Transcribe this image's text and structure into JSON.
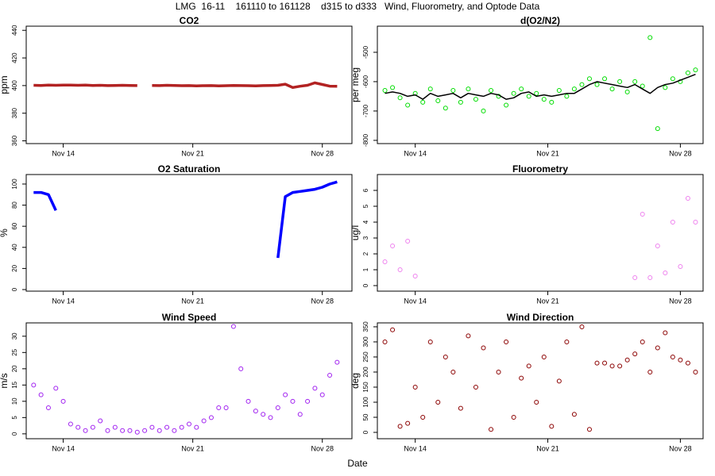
{
  "page": {
    "title": "LMG  16-11    161110 to 161128    d315 to d333   Wind, Fluorometry, and Optode Data",
    "xlabel": "Date"
  },
  "chart_data": [
    {
      "type": "line",
      "title": "CO2",
      "ylabel": "ppm",
      "x": [
        317.4,
        317.8,
        318.2,
        318.6,
        319.0,
        319.4,
        319.8,
        320.2,
        320.6,
        321.0,
        321.4,
        321.8,
        322.2,
        322.6,
        323.0,
        323.4,
        323.8,
        324.2,
        324.6,
        325.0,
        325.4,
        325.8,
        326.2,
        326.6,
        327.0,
        327.4,
        327.8,
        328.2,
        328.6,
        329.0,
        329.4,
        329.8,
        330.2,
        330.6,
        331.0,
        331.4,
        331.8,
        332.2,
        332.6,
        333.0,
        333.4,
        333.8
      ],
      "series": [
        {
          "color": "#b22222",
          "values": [
            400.2,
            400.1,
            400.3,
            400.2,
            400.4,
            400.3,
            400.2,
            400.3,
            400.1,
            400.2,
            400.0,
            400.1,
            400.2,
            400.1,
            400.0,
            null,
            400.1,
            400.0,
            400.2,
            400.1,
            399.9,
            400.0,
            399.8,
            399.9,
            400.0,
            399.8,
            399.9,
            400.1,
            400.0,
            399.9,
            399.8,
            400.0,
            400.1,
            400.2,
            401.0,
            398.6,
            399.5,
            400.2,
            402.0,
            400.8,
            399.6,
            399.5
          ]
        }
      ],
      "xlim": [
        317,
        334.6
      ],
      "xticks": [
        {
          "value": 319,
          "label": "Nov 14"
        },
        {
          "value": 326,
          "label": "Nov 21"
        },
        {
          "value": 333,
          "label": "Nov 28"
        }
      ],
      "ylim": [
        358,
        443
      ],
      "yticks": [
        360,
        380,
        400,
        420,
        440
      ]
    },
    {
      "type": "scatter",
      "title": "d(O2/N2)",
      "ylabel": "per meg",
      "x": [
        317.4,
        317.8,
        318.2,
        318.6,
        319.0,
        319.4,
        319.8,
        320.2,
        320.6,
        321.0,
        321.4,
        321.8,
        322.2,
        322.6,
        323.0,
        323.4,
        323.8,
        324.2,
        324.6,
        325.0,
        325.4,
        325.8,
        326.2,
        326.6,
        327.0,
        327.4,
        327.8,
        328.2,
        328.6,
        329.0,
        329.4,
        329.8,
        330.2,
        330.6,
        331.0,
        331.4,
        331.8,
        332.2,
        332.6,
        333.0,
        333.4,
        333.8
      ],
      "series": [
        {
          "color": "#00dd00",
          "mode": "points",
          "values": [
            -630,
            -620,
            -655,
            -680,
            -640,
            -670,
            -625,
            -665,
            -690,
            -630,
            -670,
            -625,
            -660,
            -700,
            -630,
            -650,
            -680,
            -640,
            -625,
            -650,
            -640,
            -660,
            -670,
            -630,
            -650,
            -625,
            -610,
            -590,
            -610,
            -590,
            -625,
            -600,
            -635,
            -600,
            -615,
            -450,
            -760,
            -620,
            -590,
            -600,
            -570,
            -560
          ]
        },
        {
          "color": "#000000",
          "mode": "line",
          "values": [
            -640,
            -635,
            -640,
            -650,
            -645,
            -660,
            -640,
            -650,
            -645,
            -640,
            -655,
            -640,
            -645,
            -650,
            -640,
            -645,
            -660,
            -655,
            -640,
            -635,
            -650,
            -645,
            -650,
            -645,
            -640,
            -640,
            -625,
            -610,
            -600,
            -605,
            -610,
            -615,
            -620,
            -610,
            -625,
            -640,
            -620,
            -610,
            -605,
            -595,
            -585,
            -575
          ]
        }
      ],
      "xlim": [
        317,
        334.2
      ],
      "xticks": [
        {
          "value": 319,
          "label": "Nov 14"
        },
        {
          "value": 326,
          "label": "Nov 21"
        },
        {
          "value": 333,
          "label": "Nov 28"
        }
      ],
      "ylim": [
        -811,
        -411
      ],
      "yticks": [
        -800,
        -700,
        -600,
        -500
      ]
    },
    {
      "type": "line",
      "title": "O2 Saturation",
      "ylabel": "%",
      "x": [
        317.4,
        317.8,
        318.2,
        318.6,
        319.0,
        319.4,
        319.8,
        320.2,
        320.6,
        321.0,
        321.4,
        321.8,
        322.2,
        322.6,
        323.0,
        323.4,
        323.8,
        324.2,
        324.6,
        325.0,
        325.4,
        325.8,
        326.2,
        326.6,
        327.0,
        327.4,
        327.8,
        328.2,
        328.6,
        329.0,
        329.4,
        329.8,
        330.2,
        330.6,
        331.0,
        331.4,
        331.8,
        332.2,
        332.6,
        333.0,
        333.4,
        333.8
      ],
      "series": [
        {
          "color": "#0000ff",
          "values": [
            92,
            92,
            90,
            75,
            null,
            null,
            null,
            null,
            null,
            null,
            null,
            null,
            null,
            null,
            null,
            null,
            null,
            null,
            null,
            null,
            null,
            null,
            null,
            null,
            null,
            null,
            null,
            null,
            null,
            null,
            null,
            null,
            null,
            30,
            88,
            92,
            93,
            94,
            95,
            97,
            100,
            102
          ]
        }
      ],
      "xlim": [
        317,
        334.6
      ],
      "xticks": [
        {
          "value": 319,
          "label": "Nov 14"
        },
        {
          "value": 326,
          "label": "Nov 21"
        },
        {
          "value": 333,
          "label": "Nov 28"
        }
      ],
      "ylim": [
        -1.5,
        109
      ],
      "yticks": [
        0,
        20,
        40,
        60,
        80,
        100
      ]
    },
    {
      "type": "scatter",
      "title": "Fluorometry",
      "ylabel": "ug/l",
      "x": [
        317.4,
        317.8,
        318.2,
        318.6,
        319.0,
        319.4,
        319.8,
        320.2,
        320.6,
        321.0,
        321.4,
        321.8,
        322.2,
        322.6,
        323.0,
        323.4,
        323.8,
        324.2,
        324.6,
        325.0,
        325.4,
        325.8,
        326.2,
        326.6,
        327.0,
        327.4,
        327.8,
        328.2,
        328.6,
        329.0,
        329.4,
        329.8,
        330.2,
        330.6,
        331.0,
        331.4,
        331.8,
        332.2,
        332.6,
        333.0,
        333.4,
        333.8
      ],
      "series": [
        {
          "color": "#ee82ee",
          "values": [
            1.5,
            2.5,
            1.0,
            2.8,
            0.6,
            null,
            null,
            null,
            null,
            null,
            null,
            null,
            null,
            null,
            null,
            null,
            null,
            null,
            null,
            null,
            null,
            null,
            null,
            null,
            null,
            null,
            null,
            null,
            null,
            null,
            null,
            null,
            null,
            0.5,
            4.5,
            0.5,
            2.5,
            0.8,
            4.0,
            1.2,
            5.5,
            4.0
          ]
        }
      ],
      "xlim": [
        317,
        334.2
      ],
      "xticks": [
        {
          "value": 319,
          "label": "Nov 14"
        },
        {
          "value": 326,
          "label": "Nov 21"
        },
        {
          "value": 333,
          "label": "Nov 28"
        }
      ],
      "ylim": [
        -0.35,
        7
      ],
      "yticks": [
        0,
        1,
        2,
        3,
        4,
        5,
        6
      ]
    },
    {
      "type": "scatter",
      "title": "Wind Speed",
      "ylabel": "m/s",
      "x": [
        317.4,
        317.8,
        318.2,
        318.6,
        319.0,
        319.4,
        319.8,
        320.2,
        320.6,
        321.0,
        321.4,
        321.8,
        322.2,
        322.6,
        323.0,
        323.4,
        323.8,
        324.2,
        324.6,
        325.0,
        325.4,
        325.8,
        326.2,
        326.6,
        327.0,
        327.4,
        327.8,
        328.2,
        328.6,
        329.0,
        329.4,
        329.8,
        330.2,
        330.6,
        331.0,
        331.4,
        331.8,
        332.2,
        332.6,
        333.0,
        333.4,
        333.8
      ],
      "series": [
        {
          "color": "#a020f0",
          "values": [
            15,
            12,
            8,
            14,
            10,
            3,
            2,
            1,
            2,
            4,
            1,
            2,
            1,
            1,
            0.5,
            1,
            2,
            1,
            2,
            1,
            2,
            3,
            2,
            4,
            5,
            8,
            8,
            33,
            20,
            10,
            7,
            6,
            5,
            8,
            12,
            10,
            6,
            10,
            14,
            12,
            18,
            22
          ]
        }
      ],
      "xlim": [
        317,
        334.6
      ],
      "xticks": [
        {
          "value": 319,
          "label": "Nov 14"
        },
        {
          "value": 326,
          "label": "Nov 21"
        },
        {
          "value": 333,
          "label": "Nov 28"
        }
      ],
      "ylim": [
        -1.5,
        34.1
      ],
      "yticks": [
        0,
        5,
        10,
        15,
        20,
        25,
        30
      ]
    },
    {
      "type": "scatter",
      "title": "Wind Direction",
      "ylabel": "deg",
      "x": [
        317.4,
        317.8,
        318.2,
        318.6,
        319.0,
        319.4,
        319.8,
        320.2,
        320.6,
        321.0,
        321.4,
        321.8,
        322.2,
        322.6,
        323.0,
        323.4,
        323.8,
        324.2,
        324.6,
        325.0,
        325.4,
        325.8,
        326.2,
        326.6,
        327.0,
        327.4,
        327.8,
        328.2,
        328.6,
        329.0,
        329.4,
        329.8,
        330.2,
        330.6,
        331.0,
        331.4,
        331.8,
        332.2,
        332.6,
        333.0,
        333.4,
        333.8
      ],
      "series": [
        {
          "color": "#8b0000",
          "values": [
            300,
            340,
            20,
            30,
            150,
            50,
            300,
            100,
            250,
            200,
            80,
            320,
            150,
            280,
            10,
            200,
            300,
            50,
            180,
            220,
            100,
            250,
            20,
            170,
            300,
            60,
            350,
            10,
            230,
            230,
            220,
            220,
            240,
            260,
            300,
            200,
            280,
            330,
            250,
            240,
            230,
            200
          ]
        }
      ],
      "xlim": [
        317,
        334.2
      ],
      "xticks": [
        {
          "value": 319,
          "label": "Nov 14"
        },
        {
          "value": 326,
          "label": "Nov 21"
        },
        {
          "value": 333,
          "label": "Nov 28"
        }
      ],
      "ylim": [
        -21,
        363
      ],
      "yticks": [
        0,
        50,
        100,
        150,
        200,
        250,
        300,
        350
      ]
    }
  ]
}
